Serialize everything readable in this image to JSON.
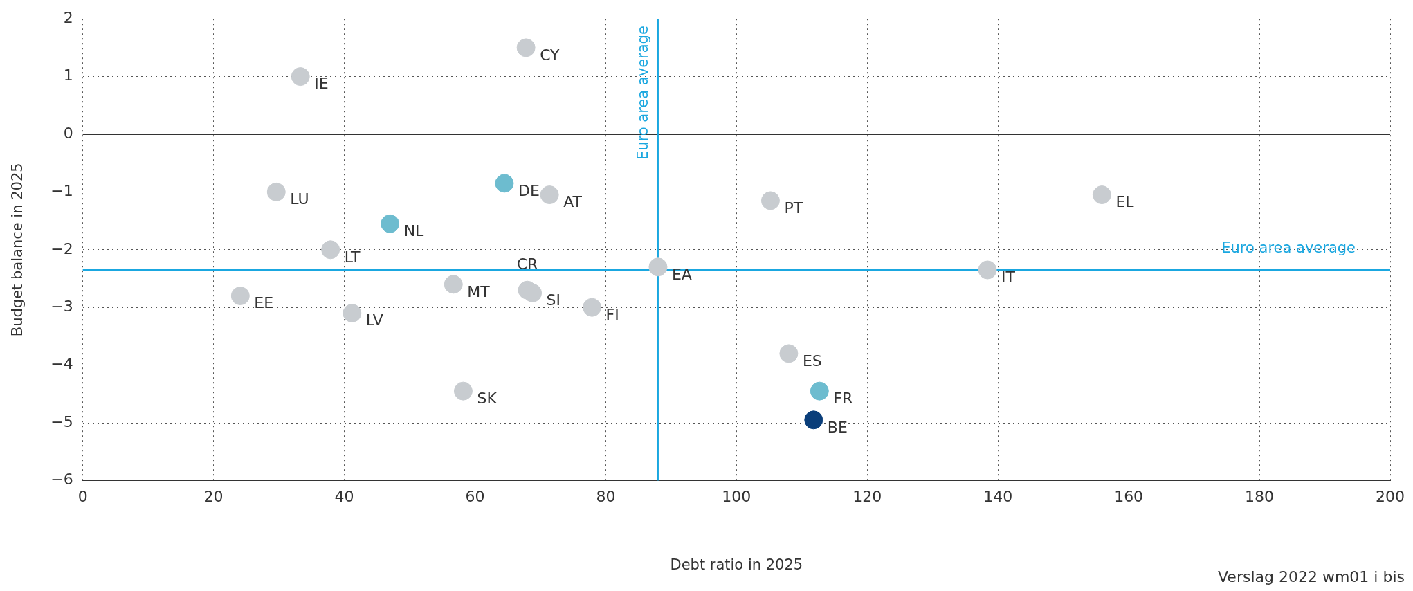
{
  "chart_data": {
    "type": "scatter",
    "xlabel": "Debt ratio in 2025",
    "ylabel": "Budget balance in 2025",
    "xlim": [
      0,
      200
    ],
    "xticks": [
      0,
      20,
      40,
      60,
      80,
      100,
      120,
      140,
      160,
      180,
      200
    ],
    "ylim": [
      -6,
      2
    ],
    "yticks": [
      -6,
      -5,
      -4,
      -3,
      -2,
      -1,
      0,
      1,
      2
    ],
    "grid": true,
    "legend": false,
    "marker": "circle",
    "series": [
      {
        "name": "IE",
        "color": "#c8ccd0",
        "x": [
          33.3
        ],
        "values": [
          1.0
        ]
      },
      {
        "name": "CY",
        "color": "#c8ccd0",
        "x": [
          67.8
        ],
        "values": [
          1.5
        ]
      },
      {
        "name": "DE",
        "color": "#6dbccf",
        "x": [
          64.5
        ],
        "values": [
          -0.85
        ]
      },
      {
        "name": "AT",
        "color": "#c8ccd0",
        "x": [
          71.4
        ],
        "values": [
          -1.05
        ]
      },
      {
        "name": "LU",
        "color": "#c8ccd0",
        "x": [
          29.6
        ],
        "values": [
          -1.0
        ]
      },
      {
        "name": "NL",
        "color": "#6dbccf",
        "x": [
          47.0
        ],
        "values": [
          -1.55
        ]
      },
      {
        "name": "LT",
        "color": "#c8ccd0",
        "x": [
          37.9
        ],
        "values": [
          -2.0
        ]
      },
      {
        "name": "PT",
        "color": "#c8ccd0",
        "x": [
          105.2
        ],
        "values": [
          -1.15
        ]
      },
      {
        "name": "EL",
        "color": "#c8ccd0",
        "x": [
          155.9
        ],
        "values": [
          -1.05
        ]
      },
      {
        "name": "EA",
        "color": "#c8ccd0",
        "x": [
          88.0
        ],
        "values": [
          -2.3
        ]
      },
      {
        "name": "IT",
        "color": "#c8ccd0",
        "x": [
          138.4
        ],
        "values": [
          -2.35
        ]
      },
      {
        "name": "EE",
        "color": "#c8ccd0",
        "x": [
          24.1
        ],
        "values": [
          -2.8
        ]
      },
      {
        "name": "MT",
        "color": "#c8ccd0",
        "x": [
          56.7
        ],
        "values": [
          -2.6
        ]
      },
      {
        "name": "SI",
        "color": "#c8ccd0",
        "x": [
          68.8
        ],
        "values": [
          -2.75
        ]
      },
      {
        "name": "CR",
        "color": "#c8ccd0",
        "x": [
          68.0
        ],
        "values": [
          -2.7
        ]
      },
      {
        "name": "LV",
        "color": "#c8ccd0",
        "x": [
          41.2
        ],
        "values": [
          -3.1
        ]
      },
      {
        "name": "FI",
        "color": "#c8ccd0",
        "x": [
          77.9
        ],
        "values": [
          -3.0
        ]
      },
      {
        "name": "ES",
        "color": "#c8ccd0",
        "x": [
          108.0
        ],
        "values": [
          -3.8
        ]
      },
      {
        "name": "SK",
        "color": "#c8ccd0",
        "x": [
          58.2
        ],
        "values": [
          -4.45
        ]
      },
      {
        "name": "FR",
        "color": "#6dbccf",
        "x": [
          112.7
        ],
        "values": [
          -4.45
        ]
      },
      {
        "name": "BE",
        "color": "#0a3e7a",
        "x": [
          111.8
        ],
        "values": [
          -4.95
        ]
      }
    ],
    "ref_lines": [
      {
        "axis": "y",
        "value": 0,
        "color": "#333333"
      },
      {
        "axis": "x",
        "value": 88,
        "label": "Euro area average",
        "color": "#1aa7e0"
      },
      {
        "axis": "y",
        "value": -2.35,
        "label": "Euro area average",
        "color": "#1aa7e0"
      }
    ],
    "annotations": [
      "Verslag 2022  wm01  i  bis"
    ]
  }
}
